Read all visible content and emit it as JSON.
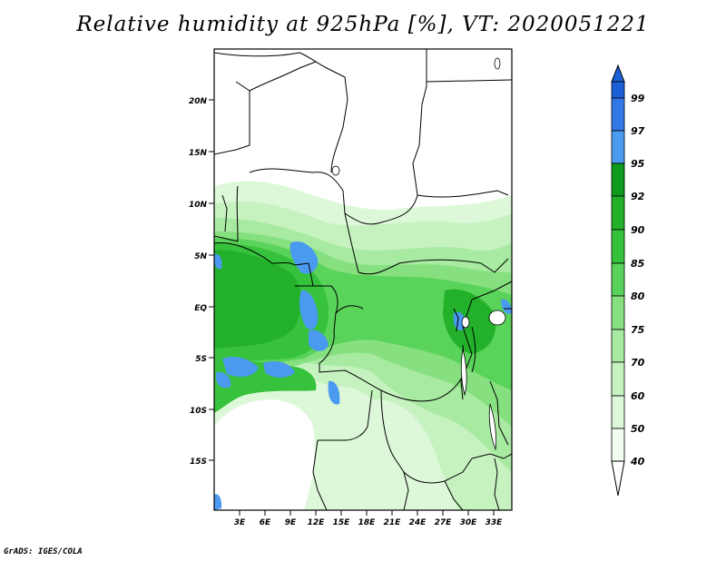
{
  "title": "Relative humidity at 925hPa [%], VT: 2020051221",
  "credit": "GrADS: IGES/COLA",
  "lat_labels": [
    "20N",
    "15N",
    "10N",
    "5N",
    "EQ",
    "5S",
    "10S",
    "15S"
  ],
  "lon_labels": [
    "3E",
    "6E",
    "9E",
    "12E",
    "15E",
    "18E",
    "21E",
    "24E",
    "27E",
    "30E",
    "33E"
  ],
  "colorbar": {
    "levels": [
      "99",
      "97",
      "95",
      "92",
      "90",
      "85",
      "80",
      "75",
      "70",
      "60",
      "50",
      "40"
    ],
    "colors": [
      "#1c5fd6",
      "#2f78e6",
      "#4a9af0",
      "#0e9a1a",
      "#23b02a",
      "#36c23c",
      "#5ad35a",
      "#86e07f",
      "#a8eaa2",
      "#c6f2c0",
      "#ddf8d9",
      "#f0fcee"
    ]
  },
  "map": {
    "field": "relative humidity",
    "level_hPa": 925,
    "valid_time": "2020051221",
    "extent": {
      "lon": [
        0,
        35
      ],
      "lat": [
        -20,
        24
      ]
    }
  }
}
